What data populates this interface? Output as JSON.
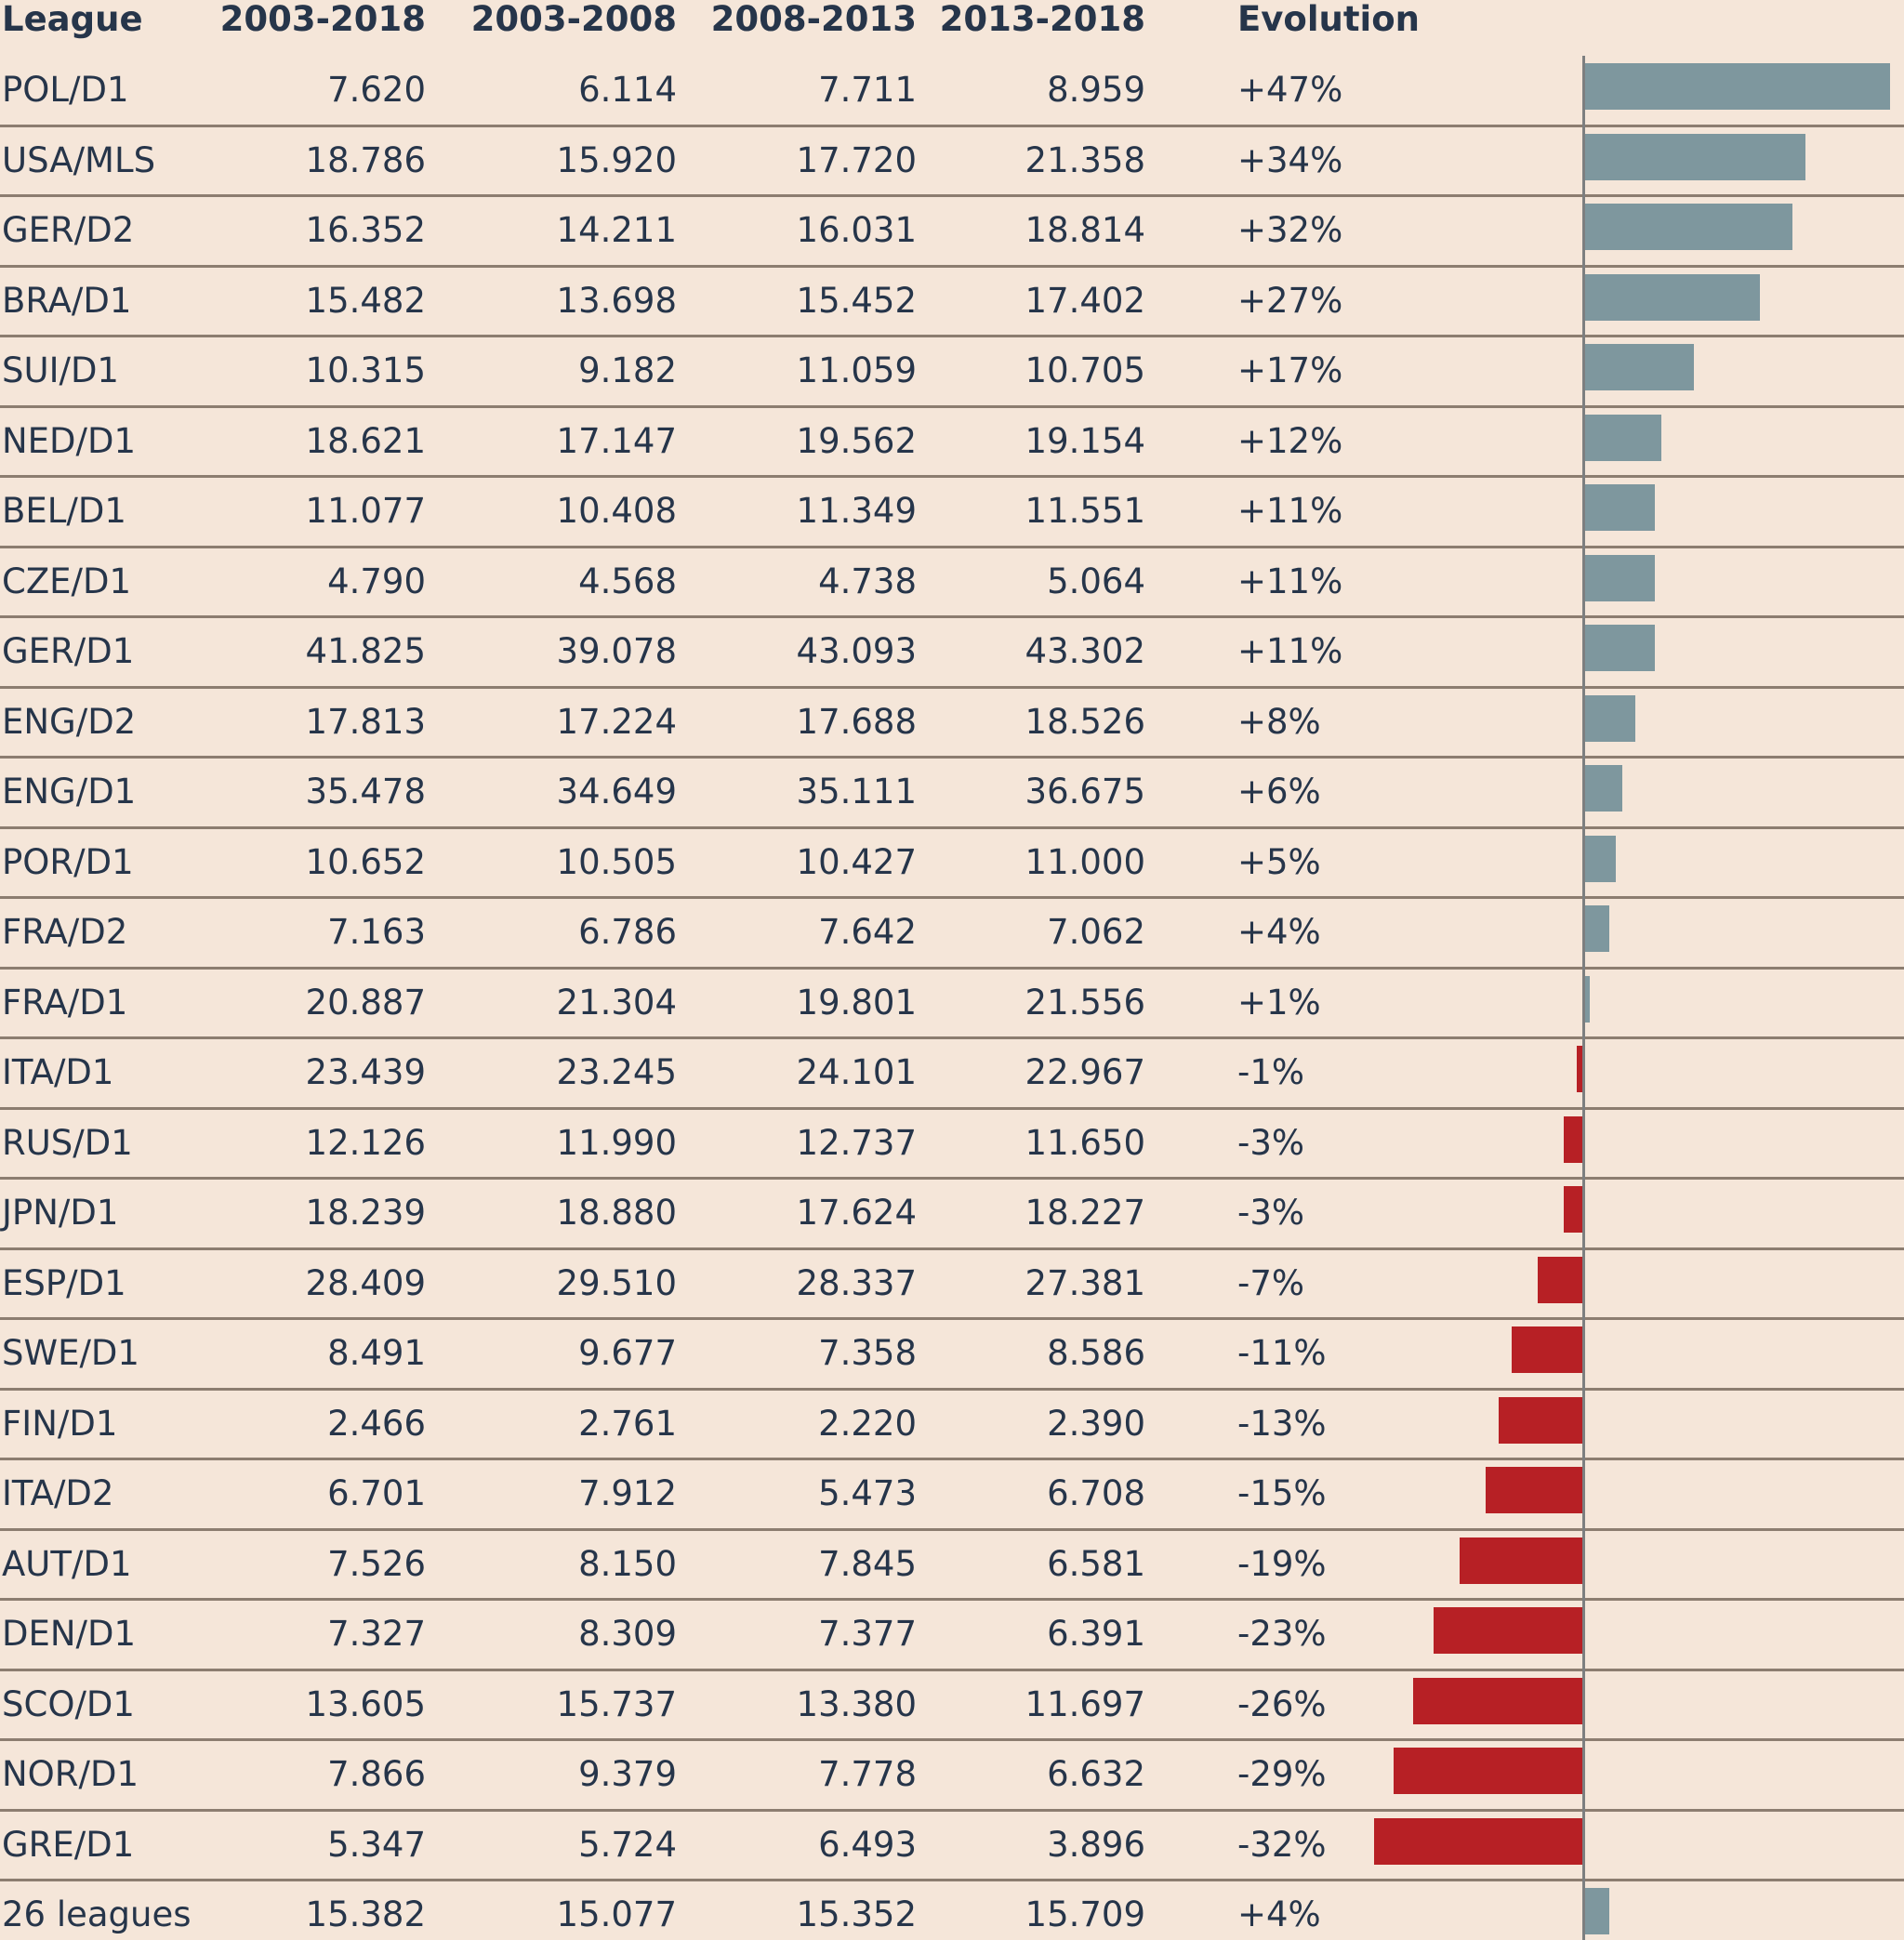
{
  "colors": {
    "background": "#f5e6d9",
    "text": "#26354a",
    "positive": "#7e979e",
    "negative": "#b72025",
    "separator": "#8c7d70"
  },
  "chart_data": {
    "type": "table",
    "columns": [
      "League",
      "2003-2018",
      "2003-2008",
      "2008-2013",
      "2013-2018",
      "Evolution"
    ],
    "rows": [
      {
        "league": "POL/D1",
        "v1": "7.620",
        "v2": "6.114",
        "v3": "7.711",
        "v4": "8.959",
        "evo": "+47%",
        "pct": 47
      },
      {
        "league": "USA/MLS",
        "v1": "18.786",
        "v2": "15.920",
        "v3": "17.720",
        "v4": "21.358",
        "evo": "+34%",
        "pct": 34
      },
      {
        "league": "GER/D2",
        "v1": "16.352",
        "v2": "14.211",
        "v3": "16.031",
        "v4": "18.814",
        "evo": "+32%",
        "pct": 32
      },
      {
        "league": "BRA/D1",
        "v1": "15.482",
        "v2": "13.698",
        "v3": "15.452",
        "v4": "17.402",
        "evo": "+27%",
        "pct": 27
      },
      {
        "league": "SUI/D1",
        "v1": "10.315",
        "v2": "9.182",
        "v3": "11.059",
        "v4": "10.705",
        "evo": "+17%",
        "pct": 17
      },
      {
        "league": "NED/D1",
        "v1": "18.621",
        "v2": "17.147",
        "v3": "19.562",
        "v4": "19.154",
        "evo": "+12%",
        "pct": 12
      },
      {
        "league": "BEL/D1",
        "v1": "11.077",
        "v2": "10.408",
        "v3": "11.349",
        "v4": "11.551",
        "evo": "+11%",
        "pct": 11
      },
      {
        "league": "CZE/D1",
        "v1": "4.790",
        "v2": "4.568",
        "v3": "4.738",
        "v4": "5.064",
        "evo": "+11%",
        "pct": 11
      },
      {
        "league": "GER/D1",
        "v1": "41.825",
        "v2": "39.078",
        "v3": "43.093",
        "v4": "43.302",
        "evo": "+11%",
        "pct": 11
      },
      {
        "league": "ENG/D2",
        "v1": "17.813",
        "v2": "17.224",
        "v3": "17.688",
        "v4": "18.526",
        "evo": "+8%",
        "pct": 8
      },
      {
        "league": "ENG/D1",
        "v1": "35.478",
        "v2": "34.649",
        "v3": "35.111",
        "v4": "36.675",
        "evo": "+6%",
        "pct": 6
      },
      {
        "league": "POR/D1",
        "v1": "10.652",
        "v2": "10.505",
        "v3": "10.427",
        "v4": "11.000",
        "evo": "+5%",
        "pct": 5
      },
      {
        "league": "FRA/D2",
        "v1": "7.163",
        "v2": "6.786",
        "v3": "7.642",
        "v4": "7.062",
        "evo": "+4%",
        "pct": 4
      },
      {
        "league": "FRA/D1",
        "v1": "20.887",
        "v2": "21.304",
        "v3": "19.801",
        "v4": "21.556",
        "evo": "+1%",
        "pct": 1
      },
      {
        "league": "ITA/D1",
        "v1": "23.439",
        "v2": "23.245",
        "v3": "24.101",
        "v4": "22.967",
        "evo": "-1%",
        "pct": -1
      },
      {
        "league": "RUS/D1",
        "v1": "12.126",
        "v2": "11.990",
        "v3": "12.737",
        "v4": "11.650",
        "evo": "-3%",
        "pct": -3
      },
      {
        "league": "JPN/D1",
        "v1": "18.239",
        "v2": "18.880",
        "v3": "17.624",
        "v4": "18.227",
        "evo": "-3%",
        "pct": -3
      },
      {
        "league": "ESP/D1",
        "v1": "28.409",
        "v2": "29.510",
        "v3": "28.337",
        "v4": "27.381",
        "evo": "-7%",
        "pct": -7
      },
      {
        "league": "SWE/D1",
        "v1": "8.491",
        "v2": "9.677",
        "v3": "7.358",
        "v4": "8.586",
        "evo": "-11%",
        "pct": -11
      },
      {
        "league": "FIN/D1",
        "v1": "2.466",
        "v2": "2.761",
        "v3": "2.220",
        "v4": "2.390",
        "evo": "-13%",
        "pct": -13
      },
      {
        "league": "ITA/D2",
        "v1": "6.701",
        "v2": "7.912",
        "v3": "5.473",
        "v4": "6.708",
        "evo": "-15%",
        "pct": -15
      },
      {
        "league": "AUT/D1",
        "v1": "7.526",
        "v2": "8.150",
        "v3": "7.845",
        "v4": "6.581",
        "evo": "-19%",
        "pct": -19
      },
      {
        "league": "DEN/D1",
        "v1": "7.327",
        "v2": "8.309",
        "v3": "7.377",
        "v4": "6.391",
        "evo": "-23%",
        "pct": -23
      },
      {
        "league": "SCO/D1",
        "v1": "13.605",
        "v2": "15.737",
        "v3": "13.380",
        "v4": "11.697",
        "evo": "-26%",
        "pct": -26
      },
      {
        "league": "NOR/D1",
        "v1": "7.866",
        "v2": "9.379",
        "v3": "7.778",
        "v4": "6.632",
        "evo": "-29%",
        "pct": -29
      },
      {
        "league": "GRE/D1",
        "v1": "5.347",
        "v2": "5.724",
        "v3": "6.493",
        "v4": "3.896",
        "evo": "-32%",
        "pct": -32
      },
      {
        "league": "26 leagues",
        "v1": "15.382",
        "v2": "15.077",
        "v3": "15.352",
        "v4": "15.709",
        "evo": "+4%",
        "pct": 4
      }
    ]
  }
}
